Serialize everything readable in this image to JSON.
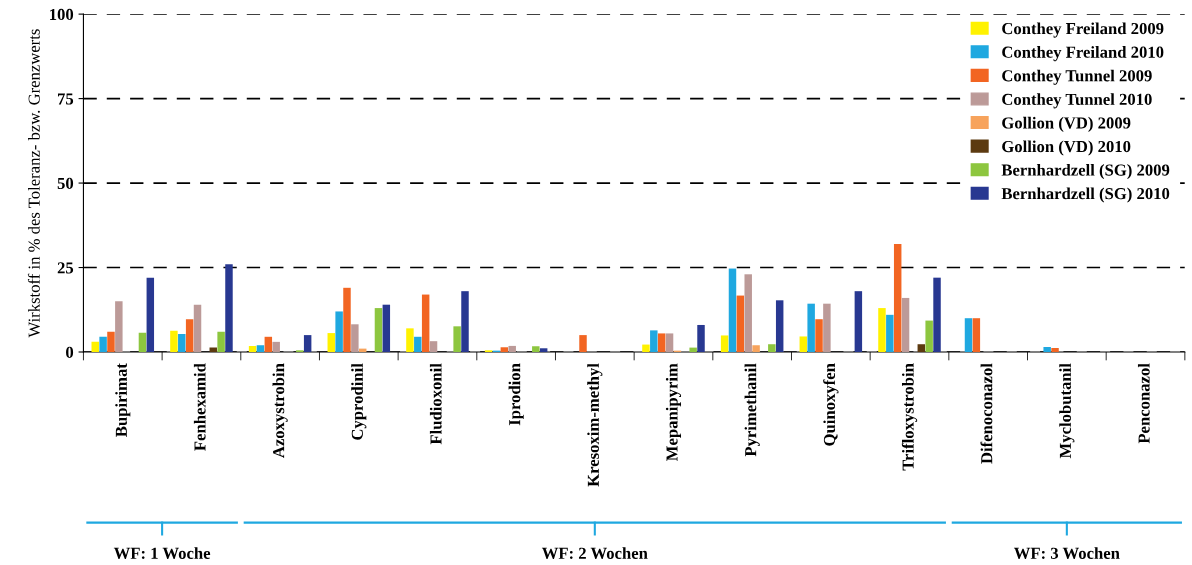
{
  "chart_data": {
    "type": "bar",
    "ylabel": "Wirkstoff in % des Toleranz- bzw. Grenzwerts",
    "categories": [
      "Bupirimat",
      "Fenhexamid",
      "Azoxystrobin",
      "Cyprodinil",
      "Fludioxonil",
      "Iprodion",
      "Kresoxim-methyl",
      "Mepanipyrim",
      "Pyrimethanil",
      "Quinoxyfen",
      "Trifloxystrobin",
      "Difenoconazol",
      "Myclobutanil",
      "Penconazol"
    ],
    "series": [
      {
        "name": "Conthey Freiland 2009",
        "color": "#fff200",
        "values": [
          3,
          6.3,
          1.8,
          5.6,
          7,
          0.5,
          0,
          2.2,
          4.9,
          4.6,
          13,
          0,
          0,
          0
        ]
      },
      {
        "name": "Conthey Freiland 2010",
        "color": "#1fa8e0",
        "values": [
          4.5,
          5.3,
          2,
          12,
          4.5,
          0.4,
          0,
          6.4,
          24.7,
          14.3,
          11,
          10,
          1.5,
          0
        ]
      },
      {
        "name": "Conthey Tunnel 2009",
        "color": "#f26522",
        "values": [
          6,
          9.7,
          4.5,
          19,
          17,
          1.4,
          5,
          5.5,
          16.7,
          9.7,
          32,
          10,
          1.2,
          0
        ]
      },
      {
        "name": "Conthey Tunnel 2010",
        "color": "#bc9a98",
        "values": [
          15,
          14,
          3,
          8.2,
          3.2,
          1.8,
          0,
          5.5,
          23,
          14.3,
          16,
          0,
          0,
          0
        ]
      },
      {
        "name": "Gollion (VD) 2009",
        "color": "#f7a35c",
        "values": [
          0,
          0,
          0,
          1,
          0,
          0,
          0,
          0.4,
          2,
          0,
          0,
          0,
          0,
          0
        ]
      },
      {
        "name": "Gollion (VD) 2010",
        "color": "#5c3a10",
        "values": [
          0,
          1.3,
          0,
          0,
          0,
          0,
          0,
          0,
          0,
          0,
          2.3,
          0,
          0,
          0
        ]
      },
      {
        "name": "Bernhardzell (SG) 2009",
        "color": "#8dc63f",
        "values": [
          5.7,
          6,
          0.5,
          13,
          7.6,
          1.7,
          0,
          1.3,
          2.3,
          0,
          9.3,
          0,
          0,
          0
        ]
      },
      {
        "name": "Bernhardzell (SG) 2010",
        "color": "#283891",
        "values": [
          22,
          26,
          5,
          14,
          18,
          1.1,
          0,
          8,
          15.3,
          18,
          22,
          0,
          0,
          0
        ]
      }
    ],
    "ylim": [
      0,
      100
    ],
    "yticks": [
      0,
      25,
      50,
      75,
      100
    ],
    "grid": "y",
    "line_style": "dashed",
    "legend": "top right",
    "annotations": [
      "WF: 1 Woche",
      "WF: 2 Wochen",
      "WF: 3 Wochen"
    ]
  }
}
